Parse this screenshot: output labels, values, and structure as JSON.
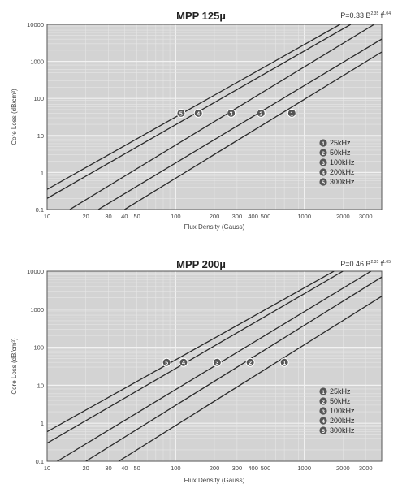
{
  "chart_data": [
    {
      "type": "line",
      "title": "MPP 125µ",
      "formula": {
        "coef": "P=0.33",
        "b_exp": "2.35",
        "f_exp": "1.04"
      },
      "xlabel": "Flux Density (Gauss)",
      "ylabel": "Core Loss (dB/cm³)",
      "x_scale": "log",
      "y_scale": "log",
      "xlim": [
        10,
        4000
      ],
      "ylim": [
        0.1,
        10000
      ],
      "x_ticks": [
        "10",
        "20",
        "30",
        "40",
        "50",
        "100",
        "200",
        "300",
        "400",
        "500",
        "1000",
        "2000",
        "3000"
      ],
      "y_ticks": [
        "0.1",
        "1",
        "10",
        "100",
        "1000",
        "10000"
      ],
      "grid": true,
      "legend_position": "bottom-right",
      "series": [
        {
          "marker": "1",
          "name": "25kHz",
          "points": [
            [
              40,
              0.1
            ],
            [
              4000,
              1800
            ]
          ]
        },
        {
          "marker": "2",
          "name": "50kHz",
          "points": [
            [
              25,
              0.1
            ],
            [
              4000,
              4000
            ]
          ]
        },
        {
          "marker": "3",
          "name": "100kHz",
          "points": [
            [
              15,
              0.1
            ],
            [
              3500,
              10000
            ]
          ]
        },
        {
          "marker": "4",
          "name": "200kHz",
          "points": [
            [
              10,
              0.2
            ],
            [
              2300,
              10000
            ]
          ]
        },
        {
          "marker": "5",
          "name": "300kHz",
          "points": [
            [
              10,
              0.35
            ],
            [
              1900,
              10000
            ]
          ]
        }
      ],
      "annotations": [
        {
          "marker": "5",
          "x": 110,
          "y": 40
        },
        {
          "marker": "4",
          "x": 150,
          "y": 40
        },
        {
          "marker": "3",
          "x": 270,
          "y": 40
        },
        {
          "marker": "2",
          "x": 460,
          "y": 40
        },
        {
          "marker": "1",
          "x": 800,
          "y": 40
        }
      ]
    },
    {
      "type": "line",
      "title": "MPP 200µ",
      "formula": {
        "coef": "P=0.46",
        "b_exp": "2.35",
        "f_exp": "1.05"
      },
      "xlabel": "Flux Density (Gauss)",
      "ylabel": "Core Loss (dB/cm³)",
      "x_scale": "log",
      "y_scale": "log",
      "xlim": [
        10,
        4000
      ],
      "ylim": [
        0.1,
        10000
      ],
      "x_ticks": [
        "10",
        "20",
        "30",
        "40",
        "50",
        "100",
        "200",
        "300",
        "400",
        "500",
        "1000",
        "2000",
        "3000"
      ],
      "y_ticks": [
        "0.1",
        "1",
        "10",
        "100",
        "1000",
        "10000"
      ],
      "grid": true,
      "legend_position": "bottom-right",
      "series": [
        {
          "marker": "1",
          "name": "25kHz",
          "points": [
            [
              36,
              0.1
            ],
            [
              4000,
              2200
            ]
          ]
        },
        {
          "marker": "2",
          "name": "50kHz",
          "points": [
            [
              20,
              0.1
            ],
            [
              4000,
              7000
            ]
          ]
        },
        {
          "marker": "3",
          "name": "100kHz",
          "points": [
            [
              12,
              0.1
            ],
            [
              3300,
              10000
            ]
          ]
        },
        {
          "marker": "4",
          "name": "200kHz",
          "points": [
            [
              10,
              0.3
            ],
            [
              2000,
              10000
            ]
          ]
        },
        {
          "marker": "5",
          "name": "300kHz",
          "points": [
            [
              10,
              0.6
            ],
            [
              1700,
              10000
            ]
          ]
        }
      ],
      "annotations": [
        {
          "marker": "5",
          "x": 85,
          "y": 40
        },
        {
          "marker": "4",
          "x": 115,
          "y": 40
        },
        {
          "marker": "3",
          "x": 210,
          "y": 40
        },
        {
          "marker": "2",
          "x": 380,
          "y": 40
        },
        {
          "marker": "1",
          "x": 700,
          "y": 40
        }
      ]
    }
  ]
}
